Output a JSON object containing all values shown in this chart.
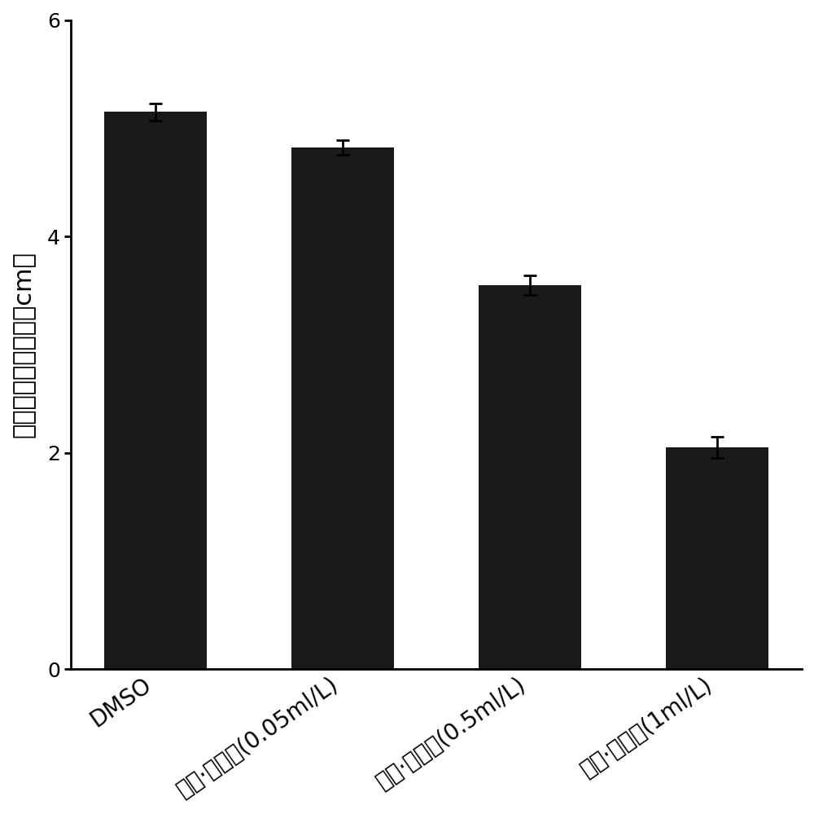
{
  "categories": [
    "DMSO",
    "甲霜·噁霉灵(0.05ml/L)",
    "甲霜·噁霉灵(0.5ml/L)",
    "甲霜·噁霉灵(1ml/L)"
  ],
  "values": [
    5.15,
    4.82,
    3.55,
    2.05
  ],
  "errors": [
    0.08,
    0.07,
    0.09,
    0.1
  ],
  "bar_color": "#1a1a1a",
  "error_color": "#000000",
  "ylabel": "植物早疫病菌直径（cm）",
  "ylim": [
    0,
    6
  ],
  "yticks": [
    0,
    2,
    4,
    6
  ],
  "background_color": "#ffffff",
  "bar_width": 0.55,
  "ylabel_fontsize": 22,
  "tick_fontsize": 18,
  "xtick_fontsize": 20
}
